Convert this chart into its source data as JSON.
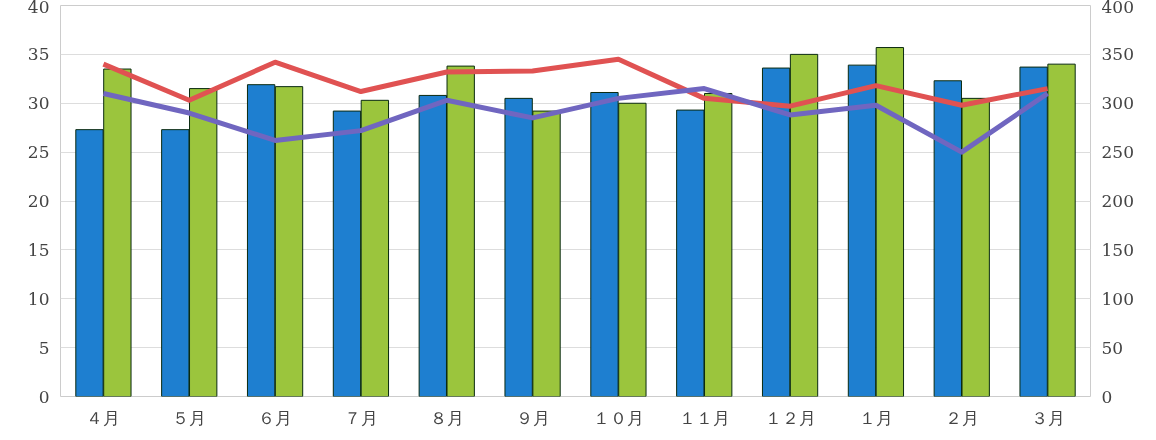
{
  "chart_data": {
    "type": "bar",
    "categories": [
      "４月",
      "５月",
      "６月",
      "７月",
      "８月",
      "９月",
      "１０月",
      "１１月",
      "１２月",
      "１月",
      "２月",
      "３月"
    ],
    "series": [
      {
        "color": "#1e7fd0",
        "values": [
          27.3,
          27.3,
          31.9,
          29.2,
          30.8,
          30.5,
          31.1,
          29.3,
          33.6,
          33.9,
          32.3,
          33.7
        ]
      },
      {
        "color": "#9bc53d",
        "values": [
          33.5,
          31.5,
          31.7,
          30.3,
          33.8,
          29.2,
          30.0,
          31.0,
          35.0,
          35.7,
          30.5,
          34.0
        ]
      },
      {
        "type": "line",
        "axis": "y2",
        "color": "#e05252",
        "values": [
          340,
          303,
          342,
          312,
          332,
          333,
          345,
          305,
          297,
          318,
          298,
          315
        ]
      },
      {
        "type": "line",
        "axis": "y2",
        "color": "#7066c0",
        "values": [
          310,
          290,
          262,
          272,
          303,
          285,
          305,
          315,
          288,
          298,
          250,
          310
        ]
      }
    ],
    "ylim": [
      0,
      40
    ],
    "yticks": [
      0,
      5,
      10,
      15,
      20,
      25,
      30,
      35,
      40
    ],
    "y2lim": [
      0,
      400
    ],
    "y2ticks": [
      0,
      50,
      100,
      150,
      200,
      250,
      300,
      350,
      400
    ],
    "grid": "y"
  }
}
